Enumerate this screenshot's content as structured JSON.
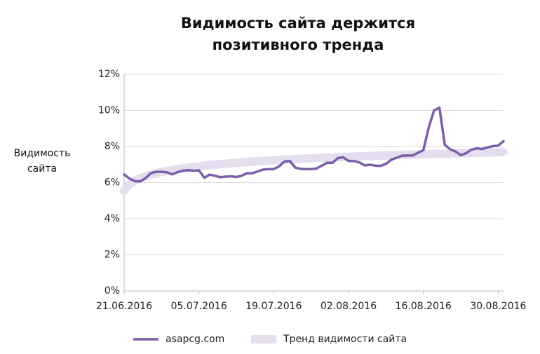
{
  "chart_data": {
    "type": "line",
    "title": "Видимость сайта держится позитивного тренда",
    "y_label": "Видимость сайта",
    "x": [
      "21.06.2016",
      "22.06.2016",
      "23.06.2016",
      "24.06.2016",
      "25.06.2016",
      "26.06.2016",
      "27.06.2016",
      "28.06.2016",
      "29.06.2016",
      "30.06.2016",
      "01.07.2016",
      "02.07.2016",
      "03.07.2016",
      "04.07.2016",
      "05.07.2016",
      "06.07.2016",
      "07.07.2016",
      "08.07.2016",
      "09.07.2016",
      "10.07.2016",
      "11.07.2016",
      "12.07.2016",
      "13.07.2016",
      "14.07.2016",
      "15.07.2016",
      "16.07.2016",
      "17.07.2016",
      "18.07.2016",
      "19.07.2016",
      "20.07.2016",
      "21.07.2016",
      "22.07.2016",
      "23.07.2016",
      "24.07.2016",
      "25.07.2016",
      "26.07.2016",
      "27.07.2016",
      "28.07.2016",
      "29.07.2016",
      "30.07.2016",
      "31.07.2016",
      "01.08.2016",
      "02.08.2016",
      "03.08.2016",
      "04.08.2016",
      "05.08.2016",
      "06.08.2016",
      "07.08.2016",
      "08.08.2016",
      "09.08.2016",
      "10.08.2016",
      "11.08.2016",
      "12.08.2016",
      "13.08.2016",
      "14.08.2016",
      "15.08.2016",
      "16.08.2016",
      "17.08.2016",
      "18.08.2016",
      "19.08.2016",
      "20.08.2016",
      "21.08.2016",
      "22.08.2016",
      "23.08.2016",
      "24.08.2016",
      "25.08.2016",
      "26.08.2016",
      "27.08.2016",
      "28.08.2016",
      "29.08.2016",
      "30.08.2016",
      "31.08.2016"
    ],
    "series": [
      {
        "name": "asapcg.com",
        "color": "#7d5ea8",
        "values": [
          6.45,
          6.22,
          6.08,
          6.07,
          6.25,
          6.52,
          6.6,
          6.6,
          6.57,
          6.46,
          6.58,
          6.66,
          6.69,
          6.66,
          6.68,
          6.27,
          6.44,
          6.38,
          6.3,
          6.33,
          6.35,
          6.31,
          6.38,
          6.52,
          6.52,
          6.62,
          6.72,
          6.75,
          6.75,
          6.9,
          7.17,
          7.2,
          6.84,
          6.76,
          6.75,
          6.75,
          6.78,
          6.94,
          7.1,
          7.1,
          7.36,
          7.4,
          7.2,
          7.2,
          7.12,
          6.95,
          6.99,
          6.94,
          6.93,
          7.04,
          7.27,
          7.38,
          7.49,
          7.5,
          7.5,
          7.65,
          7.8,
          9.05,
          10.0,
          10.15,
          8.1,
          7.85,
          7.73,
          7.52,
          7.63,
          7.83,
          7.9,
          7.86,
          7.95,
          8.02,
          8.05,
          8.3
        ]
      },
      {
        "name": "Тренд видимости сайта",
        "color": "#e4deef",
        "values": [
          5.55,
          5.9,
          6.1,
          6.24,
          6.35,
          6.45,
          6.52,
          6.59,
          6.65,
          6.7,
          6.75,
          6.79,
          6.83,
          6.87,
          6.9,
          6.94,
          6.97,
          6.99,
          7.02,
          7.05,
          7.07,
          7.1,
          7.12,
          7.14,
          7.16,
          7.18,
          7.2,
          7.22,
          7.23,
          7.25,
          7.27,
          7.28,
          7.3,
          7.31,
          7.33,
          7.34,
          7.36,
          7.37,
          7.38,
          7.39,
          7.41,
          7.42,
          7.43,
          7.44,
          7.45,
          7.46,
          7.47,
          7.48,
          7.5,
          7.51,
          7.52,
          7.52,
          7.53,
          7.54,
          7.55,
          7.56,
          7.57,
          7.58,
          7.59,
          7.6,
          7.6,
          7.61,
          7.62,
          7.63,
          7.64,
          7.64,
          7.65,
          7.66,
          7.67,
          7.67,
          7.68,
          7.69
        ]
      }
    ],
    "xticks": [
      "21.06.2016",
      "05.07.2016",
      "19.07.2016",
      "02.08.2016",
      "16.08.2016",
      "30.08.2016"
    ],
    "ylim": [
      0,
      12
    ],
    "yticks": [
      {
        "value": 0,
        "label": "0%"
      },
      {
        "value": 2,
        "label": "2%"
      },
      {
        "value": 4,
        "label": "4%"
      },
      {
        "value": 6,
        "label": "6%"
      },
      {
        "value": 8,
        "label": "8%"
      },
      {
        "value": 10,
        "label": "10%"
      },
      {
        "value": 12,
        "label": "12%"
      }
    ],
    "grid": true,
    "legend": "bottom"
  }
}
